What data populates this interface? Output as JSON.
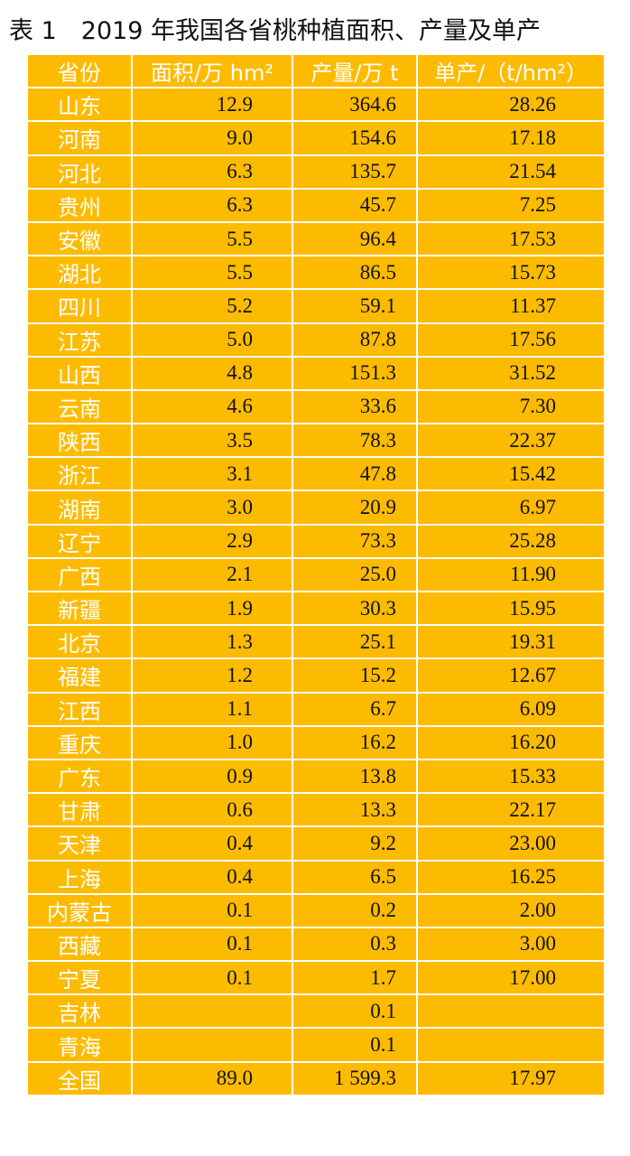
{
  "title": "表 1　2019 年我国各省桃种植面积、产量及单产",
  "headers": [
    "省份",
    "面积/万 hm²",
    "产量/万 t",
    "单产/（t/hm²）"
  ],
  "rows": [
    [
      "山东",
      "12.9",
      "364.6",
      "28.26"
    ],
    [
      "河南",
      "9.0",
      "154.6",
      "17.18"
    ],
    [
      "河北",
      "6.3",
      "135.7",
      "21.54"
    ],
    [
      "贵州",
      "6.3",
      "45.7",
      "7.25"
    ],
    [
      "安徽",
      "5.5",
      "96.4",
      "17.53"
    ],
    [
      "湖北",
      "5.5",
      "86.5",
      "15.73"
    ],
    [
      "四川",
      "5.2",
      "59.1",
      "11.37"
    ],
    [
      "江苏",
      "5.0",
      "87.8",
      "17.56"
    ],
    [
      "山西",
      "4.8",
      "151.3",
      "31.52"
    ],
    [
      "云南",
      "4.6",
      "33.6",
      "7.30"
    ],
    [
      "陕西",
      "3.5",
      "78.3",
      "22.37"
    ],
    [
      "浙江",
      "3.1",
      "47.8",
      "15.42"
    ],
    [
      "湖南",
      "3.0",
      "20.9",
      "6.97"
    ],
    [
      "辽宁",
      "2.9",
      "73.3",
      "25.28"
    ],
    [
      "广西",
      "2.1",
      "25.0",
      "11.90"
    ],
    [
      "新疆",
      "1.9",
      "30.3",
      "15.95"
    ],
    [
      "北京",
      "1.3",
      "25.1",
      "19.31"
    ],
    [
      "福建",
      "1.2",
      "15.2",
      "12.67"
    ],
    [
      "江西",
      "1.1",
      "6.7",
      "6.09"
    ],
    [
      "重庆",
      "1.0",
      "16.2",
      "16.20"
    ],
    [
      "广东",
      "0.9",
      "13.8",
      "15.33"
    ],
    [
      "甘肃",
      "0.6",
      "13.3",
      "22.17"
    ],
    [
      "天津",
      "0.4",
      "9.2",
      "23.00"
    ],
    [
      "上海",
      "0.4",
      "6.5",
      "16.25"
    ],
    [
      "内蒙古",
      "0.1",
      "0.2",
      "2.00"
    ],
    [
      "西藏",
      "0.1",
      "0.3",
      "3.00"
    ],
    [
      "宁夏",
      "0.1",
      "1.7",
      "17.00"
    ],
    [
      "吉林",
      "",
      "0.1",
      ""
    ],
    [
      "青海",
      "",
      "0.1",
      ""
    ],
    [
      "全国",
      "89.0",
      "1 599.3",
      "17.97"
    ]
  ]
}
